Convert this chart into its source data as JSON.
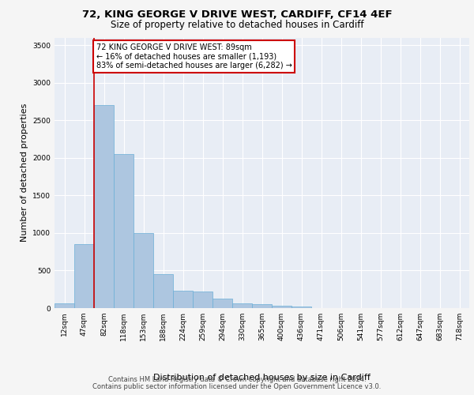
{
  "title_line1": "72, KING GEORGE V DRIVE WEST, CARDIFF, CF14 4EF",
  "title_line2": "Size of property relative to detached houses in Cardiff",
  "xlabel": "Distribution of detached houses by size in Cardiff",
  "ylabel": "Number of detached properties",
  "footer_line1": "Contains HM Land Registry data © Crown copyright and database right 2024.",
  "footer_line2": "Contains public sector information licensed under the Open Government Licence v3.0.",
  "bin_labels": [
    "12sqm",
    "47sqm",
    "82sqm",
    "118sqm",
    "153sqm",
    "188sqm",
    "224sqm",
    "259sqm",
    "294sqm",
    "330sqm",
    "365sqm",
    "400sqm",
    "436sqm",
    "471sqm",
    "506sqm",
    "541sqm",
    "577sqm",
    "612sqm",
    "647sqm",
    "683sqm",
    "718sqm"
  ],
  "bar_values": [
    60,
    850,
    2700,
    2050,
    1000,
    450,
    230,
    220,
    130,
    65,
    55,
    30,
    25,
    0,
    0,
    0,
    0,
    0,
    0,
    0,
    0
  ],
  "bar_color": "#adc6e0",
  "bar_edgecolor": "#6aaed6",
  "annotation_text": "72 KING GEORGE V DRIVE WEST: 89sqm\n← 16% of detached houses are smaller (1,193)\n83% of semi-detached houses are larger (6,282) →",
  "annotation_box_color": "#ffffff",
  "annotation_box_edgecolor": "#cc0000",
  "vline_color": "#cc0000",
  "vline_x": 1.5,
  "ylim": [
    0,
    3600
  ],
  "yticks": [
    0,
    500,
    1000,
    1500,
    2000,
    2500,
    3000,
    3500
  ],
  "plot_bg_color": "#e8edf5",
  "fig_bg_color": "#f5f5f5",
  "grid_color": "#ffffff",
  "title_fontsize": 9.5,
  "subtitle_fontsize": 8.5,
  "tick_fontsize": 6.5,
  "ylabel_fontsize": 8,
  "xlabel_fontsize": 8,
  "footer_fontsize": 6,
  "annotation_fontsize": 7
}
